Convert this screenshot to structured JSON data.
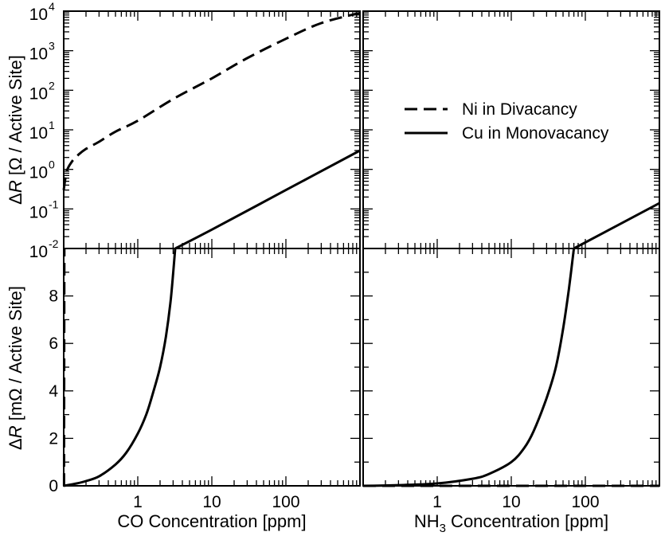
{
  "chart_data": [
    {
      "panel": "top-left",
      "type": "line",
      "xscale": "log",
      "yscale": "log",
      "xlim": [
        0.1,
        1000
      ],
      "ylim": [
        0.01,
        10000
      ],
      "ylabel": "ΔR [Ω / Active Site]",
      "ytick_labels": [
        {
          "base": "10",
          "exp": "-2"
        },
        {
          "base": "10",
          "exp": "-1"
        },
        {
          "base": "10",
          "exp": "0"
        },
        {
          "base": "10",
          "exp": "1"
        },
        {
          "base": "10",
          "exp": "2"
        },
        {
          "base": "10",
          "exp": "3"
        },
        {
          "base": "10",
          "exp": "4"
        }
      ],
      "series": [
        {
          "name": "Ni in Divacancy",
          "style": "dashed",
          "x": [
            0.1,
            0.11,
            0.13,
            0.16,
            0.2,
            0.3,
            0.5,
            1,
            3,
            10,
            30,
            100,
            300,
            1000
          ],
          "y": [
            0.3,
            0.9,
            1.6,
            2.4,
            3.3,
            5,
            9,
            17,
            60,
            200,
            650,
            2000,
            5000,
            9000
          ]
        },
        {
          "name": "Cu in Monovacancy",
          "style": "solid",
          "x": [
            3.2,
            10,
            100,
            1000
          ],
          "y": [
            0.01,
            0.03,
            0.3,
            3
          ]
        }
      ]
    },
    {
      "panel": "top-right",
      "type": "line",
      "xscale": "log",
      "yscale": "log",
      "xlim": [
        0.1,
        1000
      ],
      "ylim": [
        0.01,
        10000
      ],
      "series": [
        {
          "name": "Cu in Monovacancy",
          "style": "solid",
          "x": [
            70,
            1000
          ],
          "y": [
            0.01,
            0.14
          ]
        }
      ]
    },
    {
      "panel": "bottom-left",
      "type": "line",
      "xscale": "log",
      "xlim": [
        0.1,
        1000
      ],
      "ylim": [
        0,
        10
      ],
      "xlabel": "CO Concentration [ppm]",
      "ylabel": "ΔR [mΩ / Active Site]",
      "x_tick_labels": [
        "1",
        "10",
        "100"
      ],
      "y_tick_labels": [
        "0",
        "2",
        "4",
        "6",
        "8"
      ],
      "series": [
        {
          "name": "Ni in Divacancy",
          "style": "dashed",
          "x": [
            0.101,
            0.102
          ],
          "y": [
            0,
            10
          ]
        },
        {
          "name": "Cu in Monovacancy",
          "style": "solid",
          "x": [
            0.1,
            0.15,
            0.2,
            0.3,
            0.5,
            0.7,
            1.0,
            1.3,
            1.6,
            2.0,
            2.4,
            2.8,
            3.2
          ],
          "y": [
            0,
            0.1,
            0.2,
            0.4,
            0.9,
            1.4,
            2.2,
            3.0,
            3.9,
            5.0,
            6.3,
            7.9,
            10
          ]
        }
      ]
    },
    {
      "panel": "bottom-right",
      "type": "line",
      "xscale": "log",
      "xlim": [
        0.1,
        1000
      ],
      "ylim": [
        0,
        10
      ],
      "xlabel_main": "NH",
      "xlabel_sub": "3",
      "xlabel_rest": " Concentration [ppm]",
      "x_tick_labels": [
        "1",
        "10",
        "100"
      ],
      "series": [
        {
          "name": "Ni in Divacancy",
          "style": "dashed",
          "x": [
            0.1,
            1000
          ],
          "y": [
            0,
            0
          ]
        },
        {
          "name": "Cu in Monovacancy",
          "style": "solid",
          "x": [
            0.1,
            0.3,
            1,
            3,
            5,
            10,
            15,
            20,
            30,
            40,
            50,
            60,
            70
          ],
          "y": [
            0,
            0.03,
            0.1,
            0.3,
            0.5,
            1.0,
            1.6,
            2.3,
            3.7,
            5.0,
            6.6,
            8.3,
            10
          ]
        }
      ]
    }
  ],
  "legend": {
    "entries": [
      {
        "label": "Ni in Divacancy",
        "style": "dashed"
      },
      {
        "label": "Cu in Monovacancy",
        "style": "solid"
      }
    ]
  }
}
